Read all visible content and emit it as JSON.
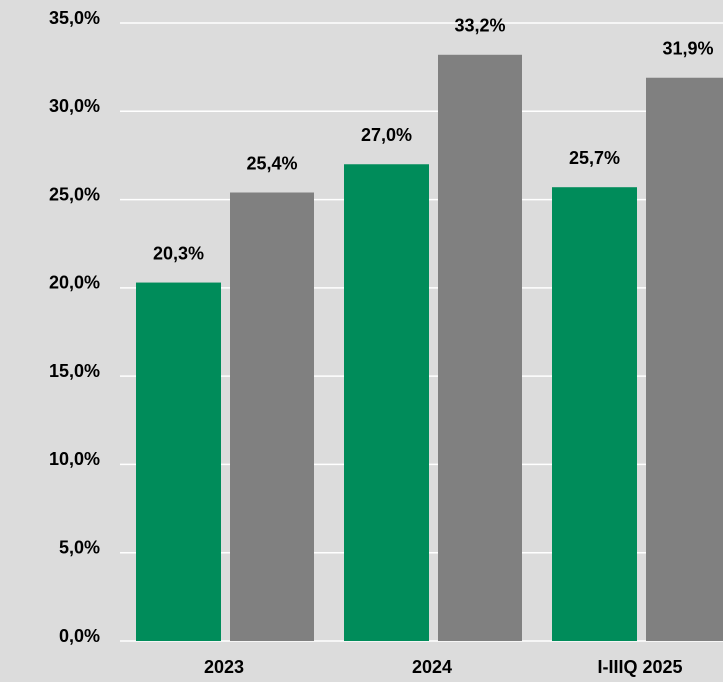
{
  "chart_data": {
    "type": "bar",
    "categories": [
      "2023",
      "2024",
      "I-IIIQ 2025"
    ],
    "series": [
      {
        "color": "#008c5a",
        "values": [
          20.3,
          27.0,
          25.7
        ],
        "value_labels": [
          "20,3%",
          "27,0%",
          "25,7%"
        ]
      },
      {
        "color": "#808080",
        "values": [
          25.4,
          33.2,
          31.9
        ],
        "value_labels": [
          "25,4%",
          "33,2%",
          "31,9%"
        ]
      }
    ],
    "ylim": [
      0,
      35
    ],
    "yticks": [
      {
        "value": 0,
        "label": "0,0%"
      },
      {
        "value": 5,
        "label": "5,0%"
      },
      {
        "value": 10,
        "label": "10,0%"
      },
      {
        "value": 15,
        "label": "15,0%"
      },
      {
        "value": 20,
        "label": "20,0%"
      },
      {
        "value": 25,
        "label": "25,0%"
      },
      {
        "value": 30,
        "label": "30,0%"
      },
      {
        "value": 35,
        "label": "35,0%"
      }
    ],
    "grid": true
  }
}
